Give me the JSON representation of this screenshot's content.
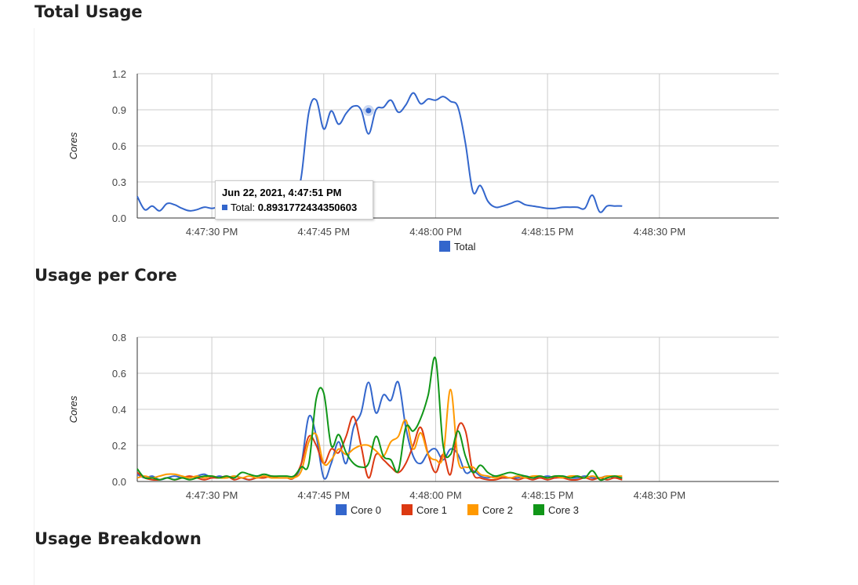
{
  "sections": {
    "total_title": "Total Usage",
    "core_title": "Usage per Core",
    "breakdown_title": "Usage Breakdown"
  },
  "tooltip": {
    "title": "Jun 22, 2021, 4:47:51 PM",
    "label": "Total:",
    "value": "0.8931772434350603"
  },
  "colors": {
    "total": "#3366cc",
    "core0": "#3366cc",
    "core1": "#dc3912",
    "core2": "#ff9900",
    "core3": "#109618",
    "grid": "#cccccc"
  },
  "chart_data": [
    {
      "type": "line",
      "title": "Total Usage",
      "ylabel": "Cores",
      "ylim": [
        0,
        1.2
      ],
      "yticks": [
        "0.0",
        "0.3",
        "0.6",
        "0.9",
        "1.2"
      ],
      "xticks": [
        "4:47:30 PM",
        "4:47:45 PM",
        "4:48:00 PM",
        "4:48:15 PM",
        "4:48:30 PM"
      ],
      "xlim_seconds": [
        20,
        106
      ],
      "x_seconds": [
        20,
        21,
        22,
        23,
        24,
        25,
        26,
        27,
        28,
        29,
        30,
        31,
        32,
        33,
        34,
        35,
        36,
        37,
        38,
        39,
        40,
        41,
        42,
        43,
        44,
        45,
        46,
        47,
        48,
        49,
        50,
        51,
        52,
        53,
        54,
        55,
        56,
        57,
        58,
        59,
        60,
        61,
        62,
        63,
        64,
        65,
        66,
        67,
        68,
        69,
        70,
        71,
        72,
        73,
        74,
        75,
        76,
        77,
        78,
        79,
        80,
        81,
        82,
        83,
        84,
        85,
        86,
        87,
        88,
        89,
        90,
        91,
        92,
        93,
        94,
        95,
        96,
        97,
        98,
        99,
        100,
        101,
        102,
        103,
        104,
        105,
        106
      ],
      "series": [
        {
          "name": "Total",
          "values": [
            0.18,
            0.07,
            0.1,
            0.06,
            0.12,
            0.11,
            0.08,
            0.06,
            0.07,
            0.09,
            0.08,
            0.09,
            0.07,
            0.08,
            0.07,
            0.06,
            0.09,
            0.08,
            0.07,
            0.07,
            0.07,
            0.07,
            0.35,
            0.88,
            0.98,
            0.74,
            0.89,
            0.78,
            0.87,
            0.93,
            0.9,
            0.7,
            0.9,
            0.92,
            0.98,
            0.88,
            0.94,
            1.04,
            0.95,
            0.99,
            0.98,
            1.01,
            0.97,
            0.92,
            0.62,
            0.22,
            0.27,
            0.14,
            0.09,
            0.1,
            0.12,
            0.14,
            0.11,
            0.1,
            0.09,
            0.08,
            0.08,
            0.09,
            0.09,
            0.09,
            0.08,
            0.19,
            0.05,
            0.1,
            0.1,
            0.1,
            0.09
          ]
        }
      ],
      "legend": "bottom"
    },
    {
      "type": "line",
      "title": "Usage per Core",
      "ylabel": "Cores",
      "ylim": [
        0,
        0.8
      ],
      "yticks": [
        "0.0",
        "0.2",
        "0.4",
        "0.6",
        "0.8"
      ],
      "xticks": [
        "4:47:30 PM",
        "4:47:45 PM",
        "4:48:00 PM",
        "4:48:15 PM",
        "4:48:30 PM"
      ],
      "xlim_seconds": [
        20,
        106
      ],
      "x_seconds": [
        20,
        21,
        22,
        23,
        24,
        25,
        26,
        27,
        28,
        29,
        30,
        31,
        32,
        33,
        34,
        35,
        36,
        37,
        38,
        39,
        40,
        41,
        42,
        43,
        44,
        45,
        46,
        47,
        48,
        49,
        50,
        51,
        52,
        53,
        54,
        55,
        56,
        57,
        58,
        59,
        60,
        61,
        62,
        63,
        64,
        65,
        66,
        67,
        68,
        69,
        70,
        71,
        72,
        73,
        74,
        75,
        76,
        77,
        78,
        79,
        80,
        81,
        82,
        83,
        84,
        85,
        86,
        87,
        88,
        89,
        90,
        91,
        92,
        93,
        94,
        95,
        96,
        97,
        98,
        99,
        100,
        101,
        102,
        103,
        104,
        105,
        106
      ],
      "series": [
        {
          "name": "Core 0",
          "values": [
            0.04,
            0.02,
            0.03,
            0.01,
            0.02,
            0.03,
            0.02,
            0.02,
            0.03,
            0.04,
            0.02,
            0.03,
            0.02,
            0.03,
            0.02,
            0.01,
            0.02,
            0.03,
            0.02,
            0.02,
            0.02,
            0.02,
            0.1,
            0.36,
            0.25,
            0.02,
            0.1,
            0.22,
            0.1,
            0.3,
            0.38,
            0.55,
            0.38,
            0.48,
            0.45,
            0.55,
            0.3,
            0.14,
            0.1,
            0.16,
            0.18,
            0.12,
            0.18,
            0.15,
            0.05,
            0.06,
            0.03,
            0.02,
            0.03,
            0.02,
            0.02,
            0.02,
            0.03,
            0.02,
            0.02,
            0.03,
            0.02,
            0.03,
            0.02,
            0.02,
            0.03,
            0.02,
            0.02,
            0.03,
            0.02,
            0.02,
            0.03
          ]
        },
        {
          "name": "Core 1",
          "values": [
            0.05,
            0.02,
            0.01,
            0.01,
            0.02,
            0.01,
            0.02,
            0.03,
            0.02,
            0.01,
            0.02,
            0.02,
            0.03,
            0.01,
            0.02,
            0.01,
            0.02,
            0.02,
            0.03,
            0.02,
            0.02,
            0.02,
            0.1,
            0.25,
            0.2,
            0.1,
            0.18,
            0.16,
            0.25,
            0.36,
            0.2,
            0.02,
            0.15,
            0.12,
            0.08,
            0.05,
            0.1,
            0.2,
            0.3,
            0.15,
            0.05,
            0.15,
            0.04,
            0.3,
            0.28,
            0.05,
            0.02,
            0.01,
            0.01,
            0.02,
            0.02,
            0.01,
            0.02,
            0.01,
            0.02,
            0.01,
            0.02,
            0.02,
            0.01,
            0.01,
            0.02,
            0.01,
            0.02,
            0.01,
            0.02,
            0.01,
            0.01
          ]
        },
        {
          "name": "Core 2",
          "values": [
            0.02,
            0.03,
            0.02,
            0.03,
            0.04,
            0.04,
            0.03,
            0.02,
            0.03,
            0.02,
            0.03,
            0.02,
            0.02,
            0.03,
            0.02,
            0.03,
            0.02,
            0.03,
            0.02,
            0.02,
            0.02,
            0.02,
            0.06,
            0.22,
            0.26,
            0.1,
            0.12,
            0.18,
            0.15,
            0.18,
            0.2,
            0.2,
            0.17,
            0.14,
            0.22,
            0.25,
            0.34,
            0.18,
            0.27,
            0.15,
            0.12,
            0.14,
            0.51,
            0.12,
            0.08,
            0.08,
            0.04,
            0.03,
            0.02,
            0.03,
            0.02,
            0.03,
            0.02,
            0.03,
            0.03,
            0.02,
            0.03,
            0.02,
            0.03,
            0.03,
            0.02,
            0.03,
            0.02,
            0.03,
            0.03,
            0.03,
            0.03
          ]
        },
        {
          "name": "Core 3",
          "values": [
            0.07,
            0.02,
            0.02,
            0.01,
            0.02,
            0.01,
            0.02,
            0.01,
            0.02,
            0.03,
            0.03,
            0.02,
            0.03,
            0.02,
            0.05,
            0.04,
            0.03,
            0.04,
            0.03,
            0.03,
            0.03,
            0.03,
            0.08,
            0.1,
            0.46,
            0.49,
            0.2,
            0.26,
            0.16,
            0.1,
            0.08,
            0.1,
            0.25,
            0.14,
            0.12,
            0.06,
            0.3,
            0.28,
            0.35,
            0.48,
            0.68,
            0.2,
            0.15,
            0.28,
            0.14,
            0.05,
            0.09,
            0.05,
            0.03,
            0.04,
            0.05,
            0.04,
            0.03,
            0.02,
            0.03,
            0.02,
            0.03,
            0.03,
            0.02,
            0.03,
            0.02,
            0.06,
            0.01,
            0.02,
            0.03,
            0.02,
            0.03
          ]
        }
      ],
      "legend": "bottom"
    }
  ]
}
